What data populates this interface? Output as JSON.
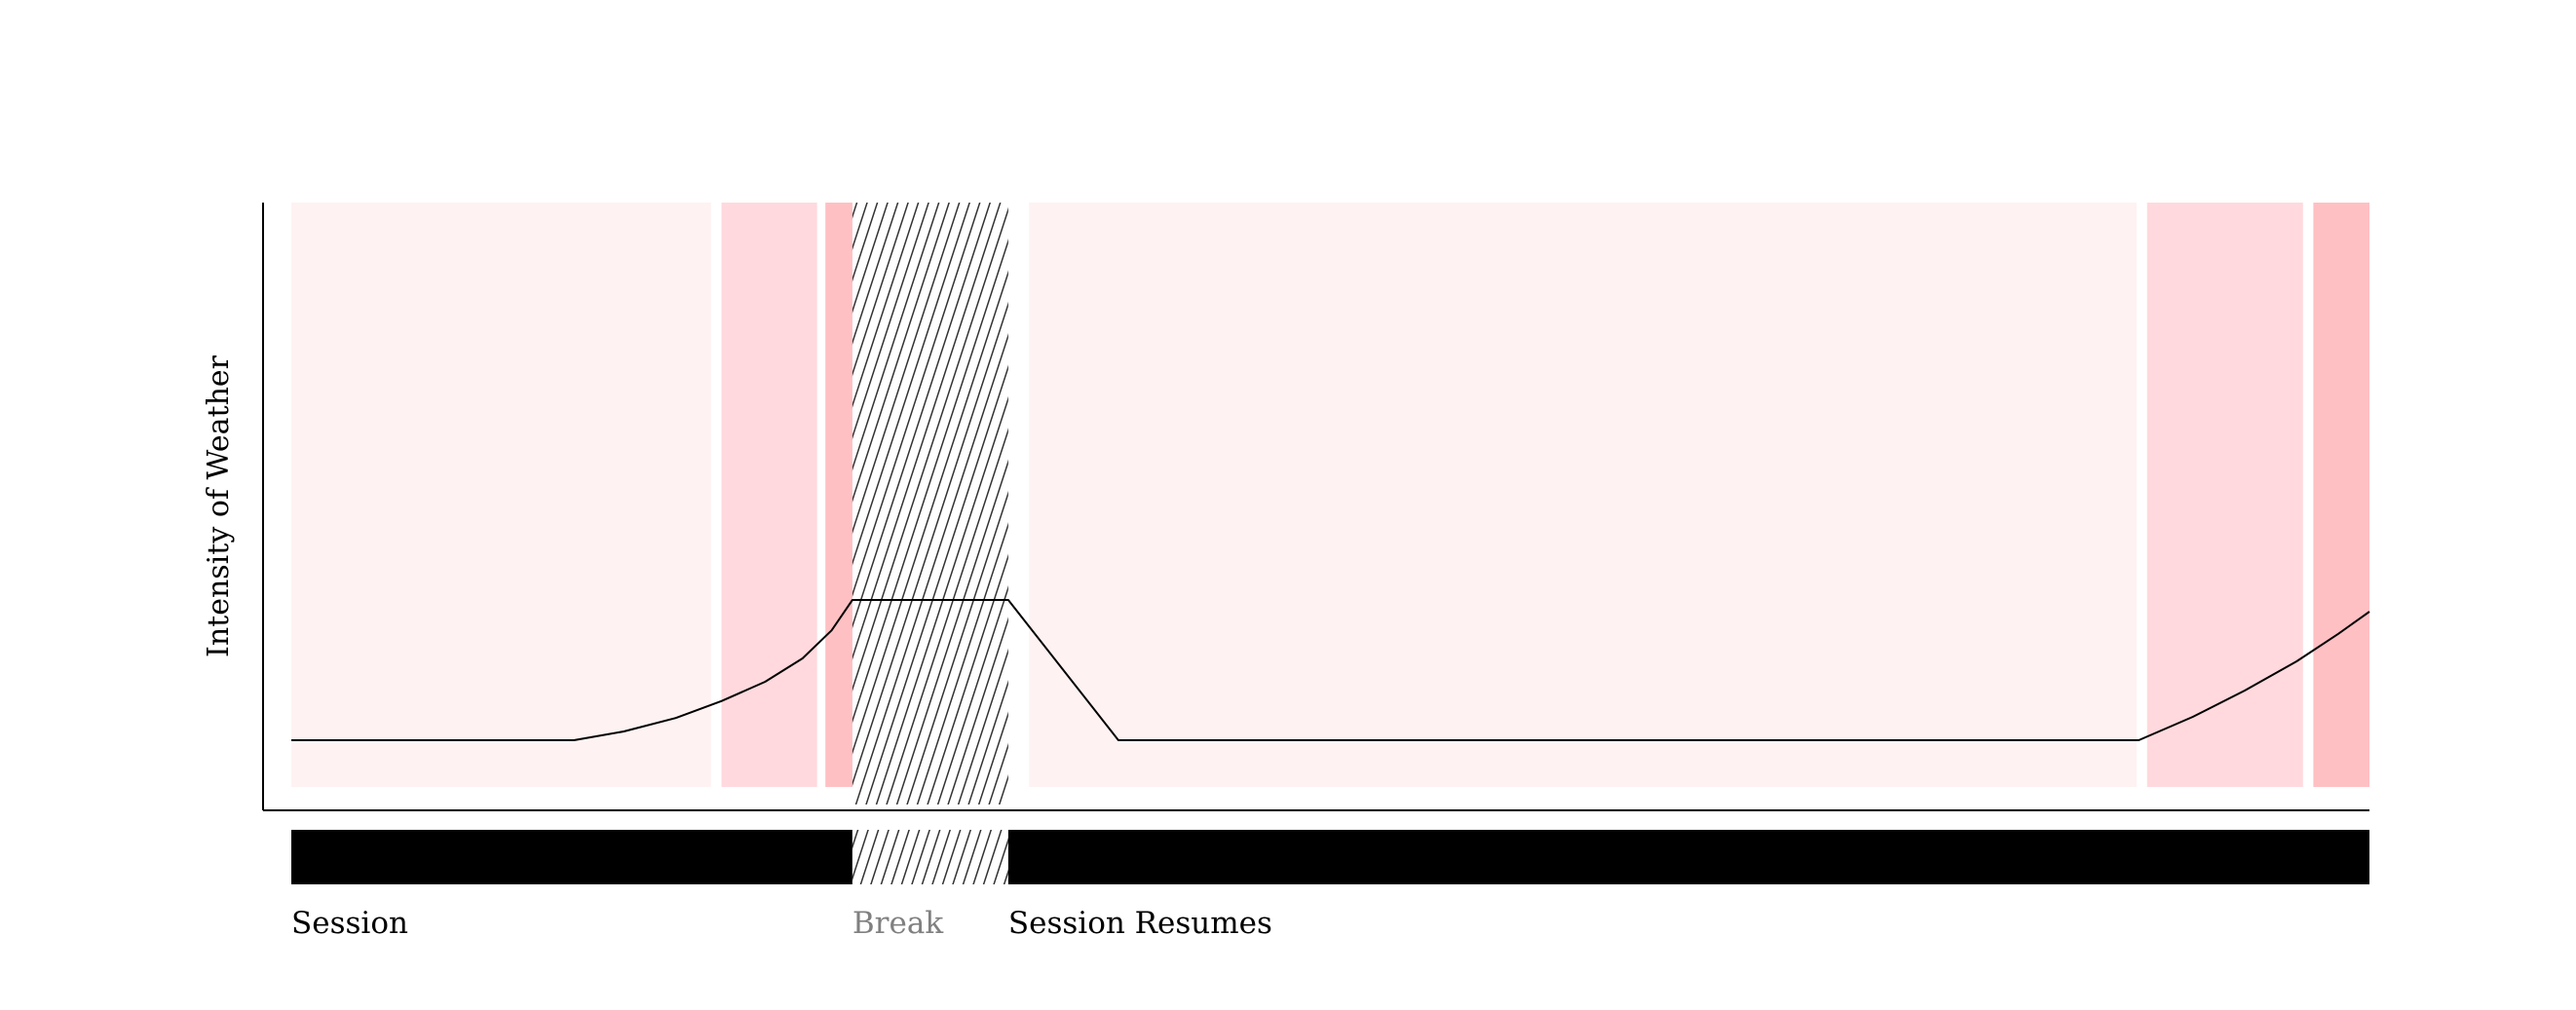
{
  "chart_data": {
    "type": "area",
    "title": "",
    "xlabel": "",
    "ylabel": "Intensity of Weather",
    "grid": false,
    "legend": "none",
    "xlim": [
      0,
      100
    ],
    "ylim": [
      0,
      1
    ],
    "bands": [
      {
        "x0": 0,
        "x1": 20.2,
        "level": "light"
      },
      {
        "x0": 20.7,
        "x1": 25.3,
        "level": "medium"
      },
      {
        "x0": 25.7,
        "x1": 27.1,
        "level": "strong"
      },
      {
        "x0": 35.5,
        "x1": 88.8,
        "level": "light"
      },
      {
        "x0": 89.3,
        "x1": 96.8,
        "level": "medium"
      },
      {
        "x0": 97.3,
        "x1": 100,
        "level": "strong"
      }
    ],
    "break": {
      "x0": 27.0,
      "x1": 34.5
    },
    "line": {
      "x": [
        0,
        13.6,
        16.0,
        18.5,
        20.7,
        22.8,
        24.6,
        26.0,
        27.0,
        34.5,
        39.8,
        88.9,
        91.5,
        94.0,
        96.5,
        98.5,
        100
      ],
      "y": [
        0.08,
        0.08,
        0.095,
        0.118,
        0.147,
        0.18,
        0.22,
        0.268,
        0.32,
        0.32,
        0.08,
        0.08,
        0.12,
        0.165,
        0.215,
        0.262,
        0.3
      ]
    },
    "timeline": [
      {
        "label": "Session",
        "x0": 0,
        "x1": 27.0,
        "kind": "session"
      },
      {
        "label": "Break",
        "x0": 27.0,
        "x1": 34.5,
        "kind": "break"
      },
      {
        "label": "Session Resumes",
        "x0": 34.5,
        "x1": 100,
        "kind": "session"
      }
    ],
    "colors": {
      "band_light": "#fff2f2",
      "band_medium": "#ffd9dd",
      "band_strong": "#ffc0c3",
      "line": "#000000",
      "axis": "#000000",
      "session_bar": "#000000",
      "break_hatch": "#333333",
      "label": "#000000",
      "break_label": "#808080"
    }
  }
}
